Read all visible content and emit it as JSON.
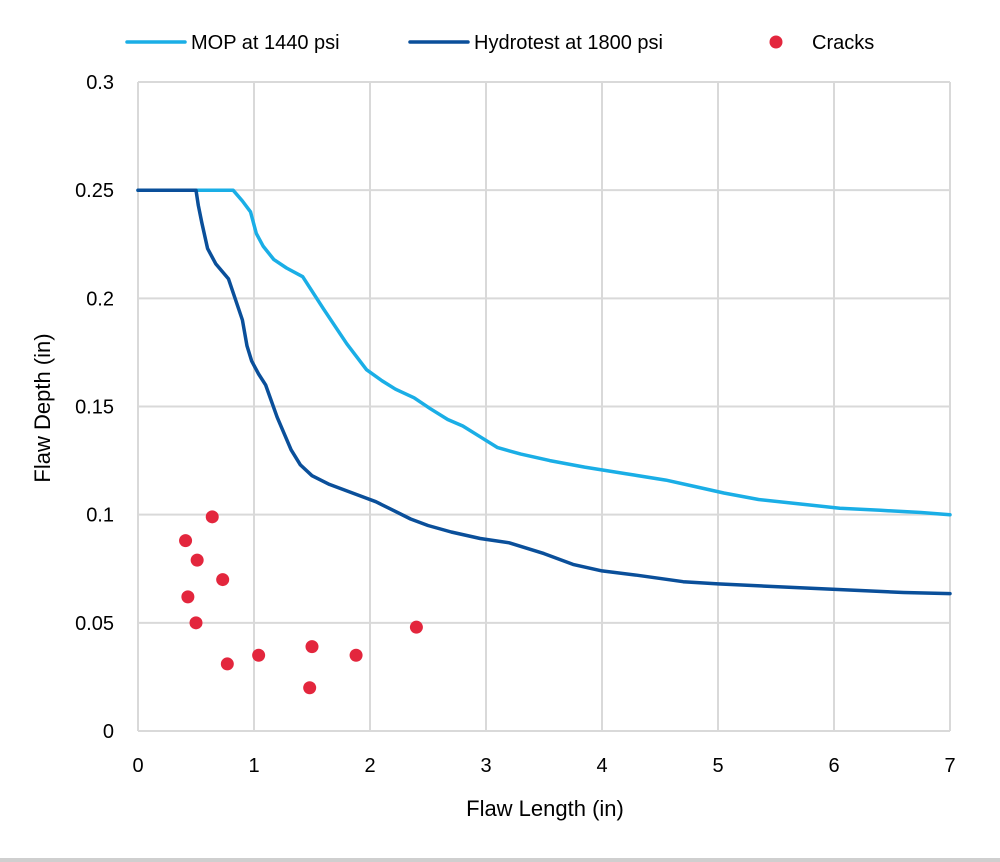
{
  "chart_data": {
    "type": "line",
    "xlabel": "Flaw Length (in)",
    "ylabel": "Flaw Depth (in)",
    "xlim": [
      0,
      7
    ],
    "ylim": [
      0,
      0.3
    ],
    "xticks": [
      0,
      1,
      2,
      3,
      4,
      5,
      6,
      7
    ],
    "yticks": [
      0,
      0.05,
      0.1,
      0.15,
      0.2,
      0.25,
      0.3
    ],
    "x_tick_labels": [
      "0",
      "1",
      "2",
      "3",
      "4",
      "5",
      "6",
      "7"
    ],
    "y_tick_labels": [
      "0",
      "0.05",
      "0.1",
      "0.15",
      "0.2",
      "0.25",
      "0.3"
    ],
    "grid": true,
    "legend_position": "top",
    "series": [
      {
        "name": "MOP at 1440 psi",
        "kind": "line",
        "color": "#1aaee6",
        "x": [
          0,
          0.82,
          0.9,
          0.97,
          1.02,
          1.08,
          1.17,
          1.28,
          1.42,
          1.6,
          1.8,
          1.97,
          2.1,
          2.22,
          2.38,
          2.52,
          2.67,
          2.8,
          2.95,
          3.1,
          3.3,
          3.55,
          3.85,
          4.2,
          4.55,
          4.8,
          5.05,
          5.35,
          5.7,
          6.05,
          6.4,
          6.75,
          7.0
        ],
        "y": [
          0.25,
          0.25,
          0.245,
          0.24,
          0.23,
          0.224,
          0.218,
          0.214,
          0.21,
          0.195,
          0.179,
          0.167,
          0.162,
          0.158,
          0.154,
          0.149,
          0.144,
          0.141,
          0.136,
          0.131,
          0.128,
          0.125,
          0.122,
          0.119,
          0.116,
          0.113,
          0.11,
          0.107,
          0.105,
          0.103,
          0.102,
          0.101,
          0.1
        ]
      },
      {
        "name": "Hydrotest at 1800 psi",
        "kind": "line",
        "color": "#0a4f9a",
        "x": [
          0,
          0.5,
          0.52,
          0.55,
          0.6,
          0.67,
          0.78,
          0.9,
          0.94,
          0.98,
          1.04,
          1.1,
          1.2,
          1.32,
          1.4,
          1.5,
          1.65,
          1.8,
          1.95,
          2.05,
          2.2,
          2.35,
          2.5,
          2.7,
          2.95,
          3.2,
          3.5,
          3.75,
          4.0,
          4.3,
          4.7,
          5.0,
          5.4,
          5.8,
          6.2,
          6.6,
          7.0
        ],
        "y": [
          0.25,
          0.25,
          0.243,
          0.235,
          0.223,
          0.216,
          0.209,
          0.19,
          0.178,
          0.171,
          0.165,
          0.16,
          0.145,
          0.13,
          0.123,
          0.118,
          0.114,
          0.111,
          0.108,
          0.106,
          0.102,
          0.098,
          0.095,
          0.092,
          0.089,
          0.087,
          0.082,
          0.077,
          0.074,
          0.072,
          0.069,
          0.068,
          0.067,
          0.066,
          0.065,
          0.064,
          0.0635
        ]
      },
      {
        "name": "Cracks",
        "kind": "scatter",
        "color": "#e3263d",
        "x": [
          0.64,
          0.41,
          0.51,
          0.73,
          0.43,
          0.5,
          0.77,
          1.04,
          1.5,
          1.88,
          2.4,
          1.48
        ],
        "y": [
          0.099,
          0.088,
          0.079,
          0.07,
          0.062,
          0.05,
          0.031,
          0.035,
          0.039,
          0.035,
          0.048,
          0.02
        ]
      }
    ]
  },
  "colors": {
    "grid": "#d9d9d9",
    "background": "#ffffff",
    "text": "#000000"
  }
}
